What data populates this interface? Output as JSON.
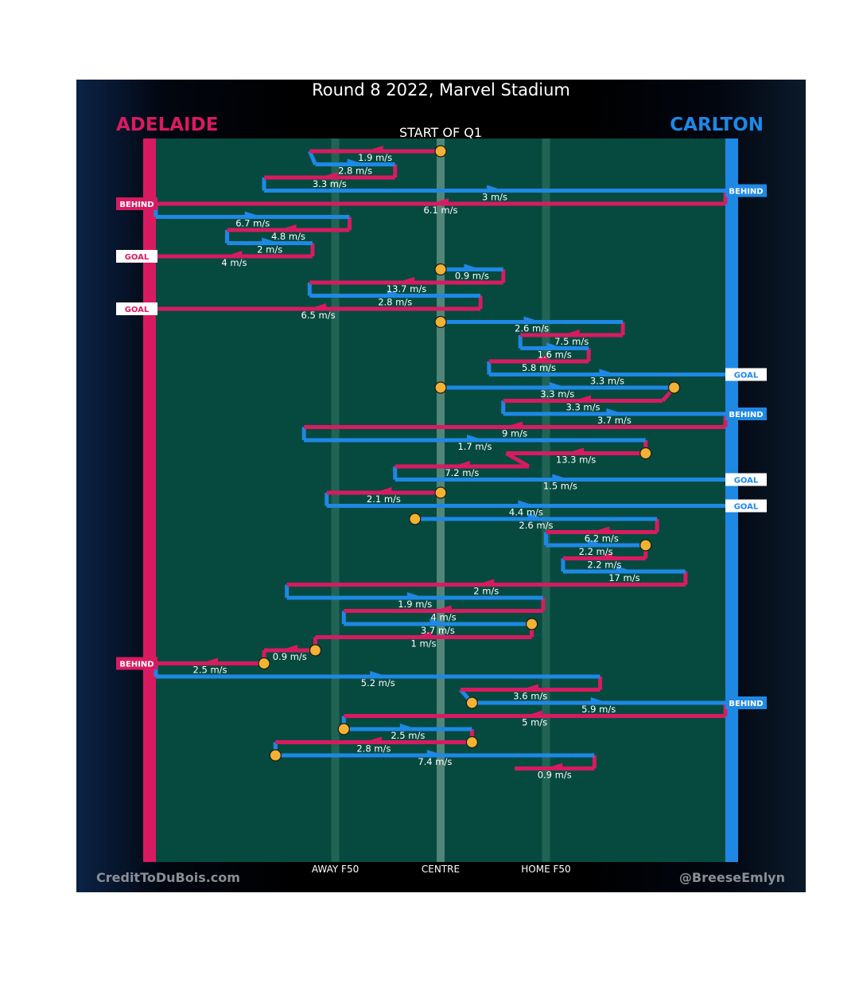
{
  "title": "Round 8 2022, Marvel Stadium",
  "period": "START OF Q1",
  "left_team": {
    "name": "ADELAIDE",
    "color": "#d81b60"
  },
  "right_team": {
    "name": "CARLTON",
    "color": "#1e88e5"
  },
  "footer": {
    "credit": "CreditToDuBois.com",
    "handle": "@BreeseEmlyn"
  },
  "zones": {
    "away": "AWAY F50",
    "centre": "CENTRE",
    "home": "HOME F50"
  },
  "colors": {
    "field": "#064a3f",
    "bounce": "#f2b233"
  },
  "chart_data": {
    "type": "line",
    "title": "Round 8 2022, Marvel Stadium",
    "subtitle": "START OF Q1",
    "x_axis": "ground position along the length of the field, 0 = Adelaide goal line, 100 = Carlton goal line",
    "xlim": [
      0,
      100
    ],
    "x_ticks": [
      {
        "x": 31.5,
        "label": "AWAY F50"
      },
      {
        "x": 50,
        "label": "CENTRE"
      },
      {
        "x": 68.5,
        "label": "HOME F50"
      }
    ],
    "y_axis": "chain step (top to bottom = time order)",
    "chains": [
      {
        "kind": "R",
        "x1": 50,
        "x2": 27,
        "speed": "1.9 m/s",
        "start_marker": "bounce"
      },
      {
        "kind": "B",
        "x1": 28,
        "x2": 42,
        "speed": "2.8 m/s"
      },
      {
        "kind": "R",
        "x1": 42,
        "x2": 19,
        "speed": "3.3 m/s"
      },
      {
        "kind": "B",
        "x1": 19,
        "x2": 100,
        "speed": "3 m/s",
        "end_marker": "BEHIND"
      },
      {
        "kind": "R",
        "x1": 100,
        "x2": 0,
        "speed": "6.1 m/s",
        "end_marker": "BEHIND"
      },
      {
        "kind": "B",
        "x1": 0,
        "x2": 34,
        "speed": "6.7 m/s"
      },
      {
        "kind": "R",
        "x1": 34,
        "x2": 12.5,
        "speed": "4.8 m/s"
      },
      {
        "kind": "B",
        "x1": 12.5,
        "x2": 27.5,
        "speed": "2 m/s"
      },
      {
        "kind": "R",
        "x1": 27.5,
        "x2": 0,
        "speed": "4 m/s",
        "end_marker": "GOAL"
      },
      {
        "kind": "B",
        "x1": 50,
        "x2": 61,
        "speed": "0.9 m/s",
        "start_marker": "bounce"
      },
      {
        "kind": "R",
        "x1": 61,
        "x2": 27,
        "speed": "13.7 m/s"
      },
      {
        "kind": "B",
        "x1": 27,
        "x2": 57,
        "speed": "2.8 m/s"
      },
      {
        "kind": "R",
        "x1": 57,
        "x2": 0,
        "speed": "6.5 m/s",
        "end_marker": "GOAL"
      },
      {
        "kind": "B",
        "x1": 50,
        "x2": 82,
        "speed": "2.6 m/s",
        "start_marker": "bounce"
      },
      {
        "kind": "R",
        "x1": 82,
        "x2": 64,
        "speed": "7.5 m/s"
      },
      {
        "kind": "B",
        "x1": 64,
        "x2": 76,
        "speed": "1.6 m/s"
      },
      {
        "kind": "R",
        "x1": 76,
        "x2": 58.5,
        "speed": "5.8 m/s"
      },
      {
        "kind": "B",
        "x1": 58.5,
        "x2": 100,
        "speed": "3.3 m/s",
        "end_marker": "GOAL"
      },
      {
        "kind": "B",
        "x1": 50,
        "x2": 91,
        "speed": "3.3 m/s",
        "start_marker": "bounce",
        "end_marker": "bounce"
      },
      {
        "kind": "R",
        "x1": 89,
        "x2": 61,
        "speed": "3.3 m/s"
      },
      {
        "kind": "B",
        "x1": 61,
        "x2": 100,
        "speed": "3.7 m/s",
        "end_marker": "BEHIND"
      },
      {
        "kind": "R",
        "x1": 100,
        "x2": 26,
        "speed": "9 m/s"
      },
      {
        "kind": "B",
        "x1": 26,
        "x2": 86,
        "speed": "1.7 m/s"
      },
      {
        "kind": "R",
        "x1": 86,
        "x2": 61.5,
        "speed": "13.3 m/s",
        "start_marker": "bounce"
      },
      {
        "kind": "R",
        "x1": 65.5,
        "x2": 42,
        "speed": "7.2 m/s"
      },
      {
        "kind": "B",
        "x1": 42,
        "x2": 100,
        "speed": "1.5 m/s",
        "end_marker": "GOAL"
      },
      {
        "kind": "R",
        "x1": 50,
        "x2": 30,
        "speed": "2.1 m/s",
        "start_marker": "bounce"
      },
      {
        "kind": "B",
        "x1": 30,
        "x2": 100,
        "speed": "4.4 m/s",
        "end_marker": "GOAL"
      },
      {
        "kind": "B",
        "x1": 45.5,
        "x2": 88,
        "speed": "2.6 m/s",
        "start_marker": "bounce"
      },
      {
        "kind": "R",
        "x1": 88,
        "x2": 68.5,
        "speed": "6.2 m/s"
      },
      {
        "kind": "B",
        "x1": 68.5,
        "x2": 86,
        "speed": "2.2 m/s",
        "end_marker": "bounce"
      },
      {
        "kind": "R",
        "x1": 86,
        "x2": 71.5,
        "speed": "2.2 m/s"
      },
      {
        "kind": "B",
        "x1": 71.5,
        "x2": 93,
        "speed": "17 m/s"
      },
      {
        "kind": "R",
        "x1": 93,
        "x2": 23,
        "speed": "2 m/s"
      },
      {
        "kind": "B",
        "x1": 23,
        "x2": 68,
        "speed": "1.9 m/s"
      },
      {
        "kind": "R",
        "x1": 68,
        "x2": 33,
        "speed": "4 m/s"
      },
      {
        "kind": "B",
        "x1": 33,
        "x2": 66,
        "speed": "3.7 m/s",
        "end_marker": "bounce"
      },
      {
        "kind": "R",
        "x1": 66,
        "x2": 28,
        "speed": "1 m/s"
      },
      {
        "kind": "R",
        "x1": 28,
        "x2": 19,
        "speed": "0.9 m/s",
        "start_marker": "bounce"
      },
      {
        "kind": "R",
        "x1": 19,
        "x2": 0,
        "speed": "2.5 m/s",
        "start_marker": "bounce",
        "end_marker": "BEHIND"
      },
      {
        "kind": "B",
        "x1": 0,
        "x2": 78,
        "speed": "5.2 m/s"
      },
      {
        "kind": "R",
        "x1": 78,
        "x2": 53.5,
        "speed": "3.6 m/s"
      },
      {
        "kind": "B",
        "x1": 55.5,
        "x2": 100,
        "speed": "5.9 m/s",
        "start_marker": "bounce",
        "end_marker": "BEHIND"
      },
      {
        "kind": "R",
        "x1": 100,
        "x2": 33,
        "speed": "5 m/s"
      },
      {
        "kind": "B",
        "x1": 33,
        "x2": 55.5,
        "speed": "2.5 m/s",
        "start_marker": "bounce"
      },
      {
        "kind": "R",
        "x1": 55.5,
        "x2": 21,
        "speed": "2.8 m/s",
        "start_marker": "bounce"
      },
      {
        "kind": "B",
        "x1": 21,
        "x2": 77,
        "speed": "7.4 m/s",
        "start_marker": "bounce"
      },
      {
        "kind": "R",
        "x1": 77,
        "x2": 63,
        "speed": "0.9 m/s"
      }
    ]
  }
}
